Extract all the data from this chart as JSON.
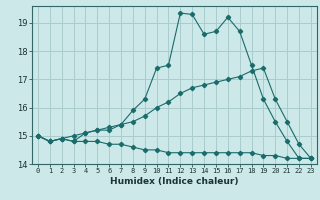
{
  "title": "",
  "xlabel": "Humidex (Indice chaleur)",
  "background_color": "#cce8e8",
  "grid_color": "#aacccc",
  "line_color": "#1a6b6b",
  "xlim": [
    -0.5,
    23.5
  ],
  "ylim": [
    14.0,
    19.6
  ],
  "x": [
    0,
    1,
    2,
    3,
    4,
    5,
    6,
    7,
    8,
    9,
    10,
    11,
    12,
    13,
    14,
    15,
    16,
    17,
    18,
    19,
    20,
    21,
    22,
    23
  ],
  "line1": [
    15.0,
    14.8,
    14.9,
    14.8,
    15.1,
    15.2,
    15.2,
    15.4,
    15.9,
    16.3,
    17.4,
    17.5,
    19.35,
    19.3,
    18.6,
    18.7,
    19.2,
    18.7,
    17.5,
    16.3,
    15.5,
    14.8,
    14.2,
    14.2
  ],
  "line2": [
    15.0,
    14.8,
    14.9,
    15.0,
    15.1,
    15.2,
    15.3,
    15.4,
    15.5,
    15.7,
    16.0,
    16.2,
    16.5,
    16.7,
    16.8,
    16.9,
    17.0,
    17.1,
    17.3,
    17.4,
    16.3,
    15.5,
    14.7,
    14.2
  ],
  "line3": [
    15.0,
    14.8,
    14.9,
    14.8,
    14.8,
    14.8,
    14.7,
    14.7,
    14.6,
    14.5,
    14.5,
    14.4,
    14.4,
    14.4,
    14.4,
    14.4,
    14.4,
    14.4,
    14.4,
    14.3,
    14.3,
    14.2,
    14.2,
    14.2
  ],
  "yticks": [
    14,
    15,
    16,
    17,
    18,
    19
  ],
  "xticks": [
    0,
    1,
    2,
    3,
    4,
    5,
    6,
    7,
    8,
    9,
    10,
    11,
    12,
    13,
    14,
    15,
    16,
    17,
    18,
    19,
    20,
    21,
    22,
    23
  ],
  "xlabel_fontsize": 6.5,
  "xtick_fontsize": 5.0,
  "ytick_fontsize": 6.0
}
